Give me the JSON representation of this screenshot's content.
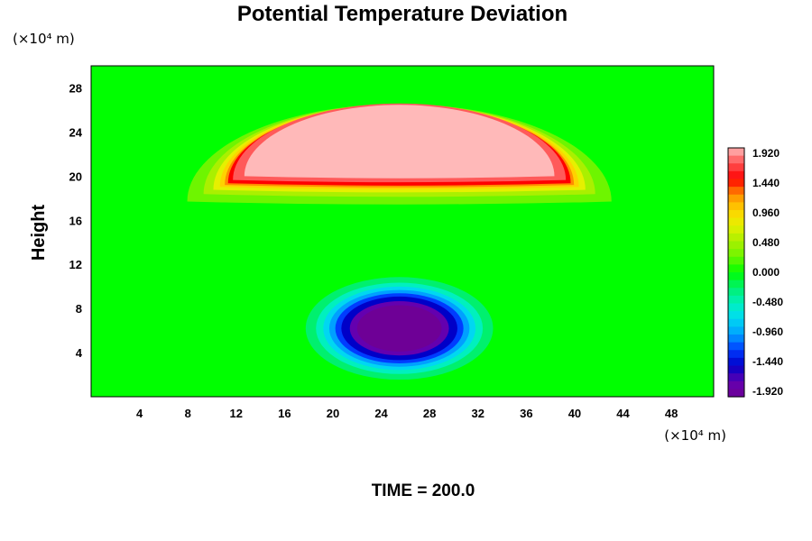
{
  "chart_data": {
    "type": "heatmap",
    "title": "Potential Temperature Deviation",
    "ylabel": "Height",
    "x_unit": "(×10⁴ m)",
    "y_unit": "(×10⁴ m)",
    "xlim": [
      0,
      51.5
    ],
    "ylim": [
      0,
      30
    ],
    "x_ticks": [
      "4",
      "8",
      "12",
      "16",
      "20",
      "24",
      "28",
      "32",
      "36",
      "40",
      "44",
      "48"
    ],
    "y_ticks": [
      "4",
      "8",
      "12",
      "16",
      "20",
      "24",
      "28"
    ],
    "colorbar": {
      "range": [
        -1.92,
        1.92
      ],
      "ticks": [
        "1.920",
        "1.440",
        "0.960",
        "0.480",
        "0.000",
        "-0.480",
        "-0.960",
        "-1.440",
        "-1.920"
      ]
    },
    "features": [
      {
        "name": "warm anomaly",
        "shape": "half-ellipse",
        "center_x": 25.5,
        "base_y": 20.0,
        "half_width": 13.5,
        "top_y": 26.8,
        "peak_value": 1.92
      },
      {
        "name": "cold anomaly",
        "shape": "ellipse",
        "center_x": 25.5,
        "center_y": 6.2,
        "radius_x": 5.0,
        "radius_y": 4.0,
        "peak_value": -1.92
      }
    ],
    "background_value": 0.0
  },
  "footer": {
    "time_label": "TIME = 200.0"
  }
}
